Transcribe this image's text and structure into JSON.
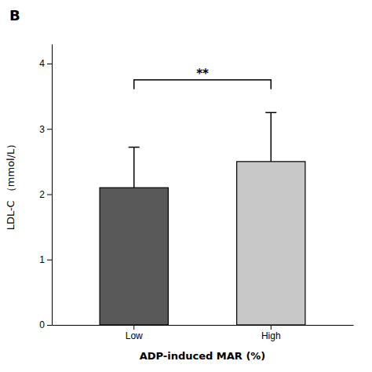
{
  "chart_data": {
    "type": "bar",
    "title": "B",
    "categories": [
      "Low",
      "High"
    ],
    "values": [
      2.1,
      2.5
    ],
    "errors": [
      0.62,
      0.75
    ],
    "colors": [
      "#595959",
      "#c8c8c8"
    ],
    "xlabel": "ADP-induced MAR (%)",
    "ylabel": "LDL-C （mmol/L）",
    "ylim": [
      0,
      4.3
    ],
    "yticks": [
      0,
      1,
      2,
      3,
      4
    ],
    "annotations": [
      {
        "text": "**",
        "from": "Low",
        "to": "High",
        "y": 3.75
      }
    ]
  }
}
